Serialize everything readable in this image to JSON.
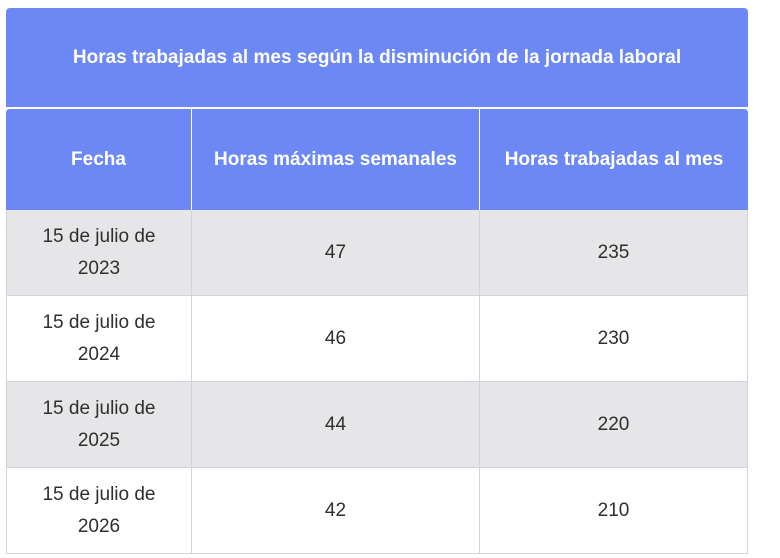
{
  "table": {
    "title": "Horas trabajadas al mes según la disminución de la jornada laboral",
    "headers": [
      "Fecha",
      "Horas máximas semanales",
      "Horas trabajadas al mes"
    ],
    "rows": [
      [
        "15 de julio de 2023",
        "47",
        "235"
      ],
      [
        "15 de julio de 2024",
        "46",
        "230"
      ],
      [
        "15 de julio de 2025",
        "44",
        "220"
      ],
      [
        "15 de julio de 2026",
        "42",
        "210"
      ]
    ]
  },
  "colors": {
    "header_bg": "#6b88f5",
    "header_text": "#ffffff",
    "row_shaded": "#e6e6e9",
    "row_plain": "#ffffff",
    "border": "#cfd4dc"
  }
}
